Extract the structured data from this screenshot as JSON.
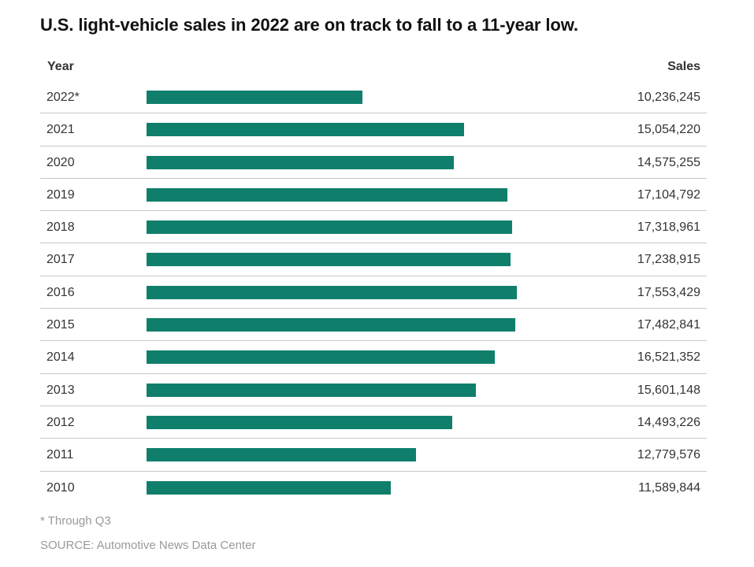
{
  "title": "U.S. light-vehicle sales in 2022 are on track to fall to a 11-year low.",
  "headers": {
    "year": "Year",
    "sales": "Sales"
  },
  "footnote": "* Through Q3",
  "source": "SOURCE: Automotive News Data Center",
  "bar_color": "#0f7f6c",
  "chart_data": {
    "type": "bar",
    "orientation": "horizontal",
    "title": "U.S. light-vehicle sales in 2022 are on track to fall to a 11-year low.",
    "xlabel": "Sales",
    "ylabel": "Year",
    "grid": false,
    "categories": [
      "2022*",
      "2021",
      "2020",
      "2019",
      "2018",
      "2017",
      "2016",
      "2015",
      "2014",
      "2013",
      "2012",
      "2011",
      "2010"
    ],
    "value_labels": [
      "10,236,245",
      "15,054,220",
      "14,575,255",
      "17,104,792",
      "17,318,961",
      "17,238,915",
      "17,553,429",
      "17,482,841",
      "16,521,352",
      "15,601,148",
      "14,493,226",
      "12,779,576",
      "11,589,844"
    ],
    "values": [
      10236245,
      15054220,
      14575255,
      17104792,
      17318961,
      17238915,
      17553429,
      17482841,
      16521352,
      15601148,
      14493226,
      12779576,
      11589844
    ]
  }
}
